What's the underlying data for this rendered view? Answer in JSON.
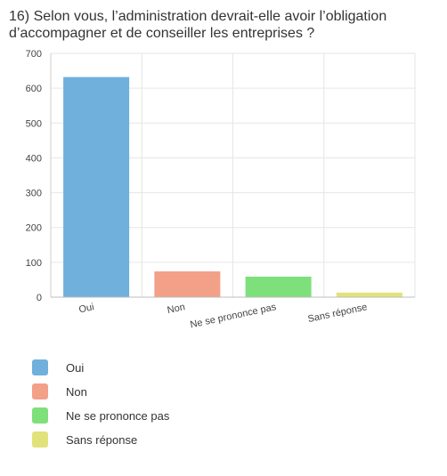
{
  "chart_data": {
    "type": "bar",
    "title": "16) Selon vous, l’administration devrait-elle avoir l’obligation d’accompagner et de conseiller les entreprises ?",
    "categories": [
      "Oui",
      "Non",
      "Ne se prononce pas",
      "Sans réponse"
    ],
    "values": [
      632,
      74,
      59,
      13
    ],
    "colors": [
      "#6fb0dc",
      "#f3a088",
      "#7ee07a",
      "#e2e27a"
    ],
    "ylim": [
      0,
      700
    ],
    "yticks": [
      0,
      100,
      200,
      300,
      400,
      500,
      600,
      700
    ],
    "grid": true,
    "legend_position": "bottom-left"
  }
}
